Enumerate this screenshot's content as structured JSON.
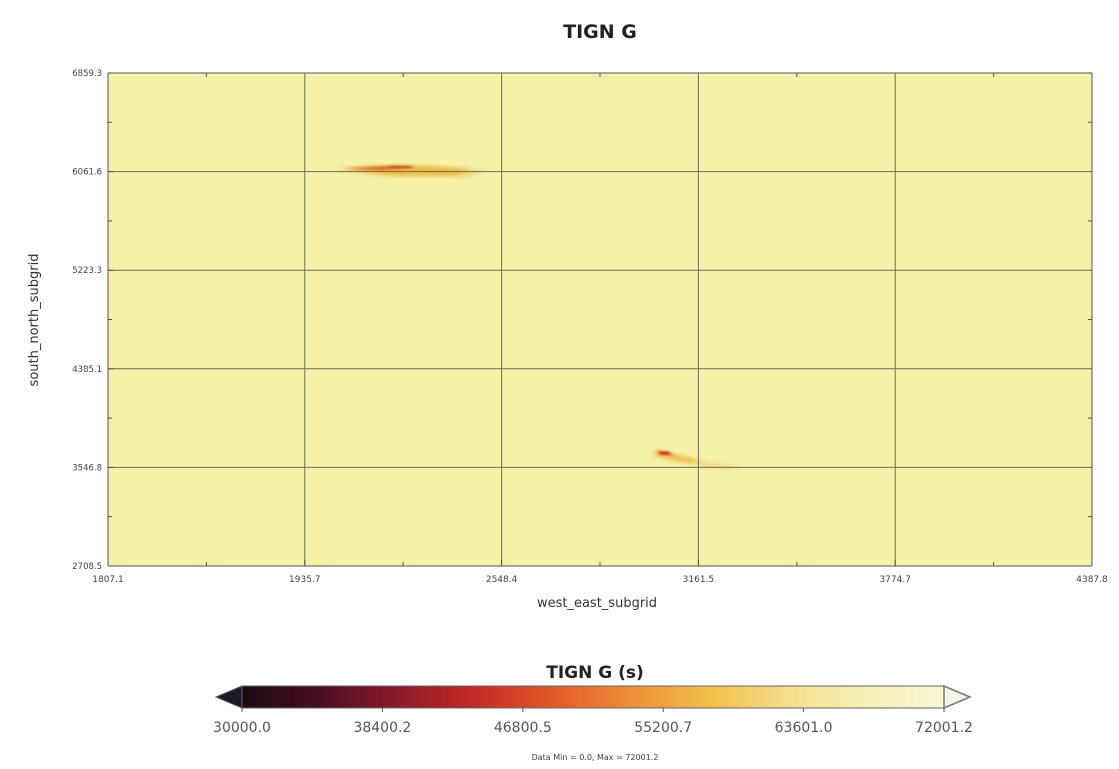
{
  "chart_data": {
    "type": "heatmap",
    "title": "TIGN G",
    "xlabel": "west_east_subgrid",
    "ylabel": "south_north_subgrid",
    "xlim": [
      1807.1,
      4387.8
    ],
    "ylim": [
      2708.5,
      6859.3
    ],
    "x_ticks": [
      "1807.1",
      "1935.7",
      "2548.4",
      "3161.5",
      "3774.7",
      "4387.8"
    ],
    "y_ticks": [
      "2708.5",
      "3546.8",
      "4385.1",
      "5223.3",
      "6061.6",
      "6859.3"
    ],
    "grid": true,
    "background_color": "#f5f1a9",
    "fire_regions": [
      {
        "name": "",
        "cx": 2830,
        "cy": 6000,
        "outer": [
          [
            2400,
            6050
          ],
          [
            2600,
            6080
          ],
          [
            2800,
            6045
          ],
          [
            2750,
            5980
          ],
          [
            2530,
            5990
          ]
        ],
        "mid": [
          [
            2410,
            6055
          ],
          [
            2590,
            6085
          ],
          [
            2760,
            6050
          ],
          [
            2720,
            6000
          ],
          [
            2560,
            6000
          ]
        ],
        "core": [
          [
            2430,
            6058
          ],
          [
            2560,
            6080
          ],
          [
            2610,
            6062
          ],
          [
            2520,
            6040
          ]
        ],
        "hot": [
          [
            2540,
            6070
          ],
          [
            2600,
            6075
          ],
          [
            2610,
            6060
          ],
          [
            2555,
            6060
          ]
        ]
      },
      {
        "name": "",
        "cx": 3390,
        "cy": 3600,
        "outer": [
          [
            3240,
            3680
          ],
          [
            3300,
            3640
          ],
          [
            3420,
            3560
          ],
          [
            3480,
            3540
          ],
          [
            3420,
            3525
          ],
          [
            3290,
            3590
          ],
          [
            3230,
            3640
          ]
        ],
        "mid": [
          [
            3240,
            3680
          ],
          [
            3290,
            3650
          ],
          [
            3360,
            3590
          ],
          [
            3320,
            3585
          ],
          [
            3250,
            3640
          ]
        ],
        "core": [
          [
            3245,
            3680
          ],
          [
            3280,
            3670
          ],
          [
            3290,
            3640
          ],
          [
            3255,
            3640
          ]
        ],
        "hot": [
          [
            3255,
            3670
          ],
          [
            3275,
            3665
          ],
          [
            3280,
            3650
          ],
          [
            3260,
            3650
          ]
        ]
      }
    ],
    "colorbar": {
      "label": "TIGN G (s)",
      "min": 30000.0,
      "max": 72001.2,
      "ticks": [
        "30000.0",
        "38400.2",
        "46800.5",
        "55200.7",
        "63601.0",
        "72001.2"
      ],
      "stops": [
        "#1a0a12",
        "#4a0e22",
        "#8c1a2a",
        "#c42a26",
        "#e25a2a",
        "#ee8f38",
        "#f2c04a",
        "#f3de8a",
        "#f6f0b8",
        "#f9f6d6"
      ],
      "under_color": "#1a1a2a",
      "over_color": "#f4f4e8",
      "caption": "Data Min = 0.0, Max = 72001.2"
    }
  }
}
